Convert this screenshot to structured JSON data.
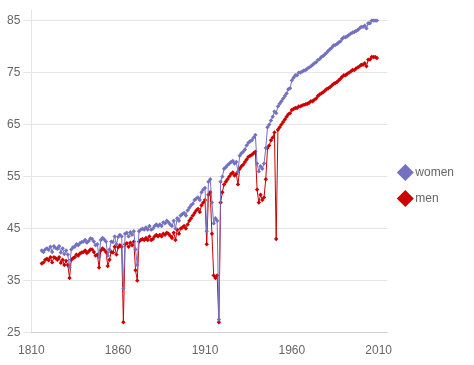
{
  "chart_data": {
    "type": "line",
    "x": [
      1816,
      1817,
      1818,
      1819,
      1820,
      1821,
      1822,
      1823,
      1824,
      1825,
      1826,
      1827,
      1828,
      1829,
      1830,
      1831,
      1832,
      1833,
      1834,
      1835,
      1836,
      1837,
      1838,
      1839,
      1840,
      1841,
      1842,
      1843,
      1844,
      1845,
      1846,
      1847,
      1848,
      1849,
      1850,
      1851,
      1852,
      1853,
      1854,
      1855,
      1856,
      1857,
      1858,
      1859,
      1860,
      1861,
      1862,
      1863,
      1864,
      1865,
      1866,
      1867,
      1868,
      1869,
      1870,
      1871,
      1872,
      1873,
      1874,
      1875,
      1876,
      1877,
      1878,
      1879,
      1880,
      1881,
      1882,
      1883,
      1884,
      1885,
      1886,
      1887,
      1888,
      1889,
      1890,
      1891,
      1892,
      1893,
      1894,
      1895,
      1896,
      1897,
      1898,
      1899,
      1900,
      1901,
      1902,
      1903,
      1904,
      1905,
      1906,
      1907,
      1908,
      1909,
      1910,
      1911,
      1912,
      1913,
      1914,
      1915,
      1916,
      1917,
      1918,
      1919,
      1920,
      1921,
      1922,
      1923,
      1924,
      1925,
      1926,
      1927,
      1928,
      1929,
      1930,
      1931,
      1932,
      1933,
      1934,
      1935,
      1936,
      1937,
      1938,
      1939,
      1940,
      1941,
      1942,
      1943,
      1944,
      1945,
      1946,
      1947,
      1948,
      1949,
      1950,
      1951,
      1952,
      1953,
      1954,
      1955,
      1956,
      1957,
      1958,
      1959,
      1960,
      1961,
      1962,
      1963,
      1964,
      1965,
      1966,
      1967,
      1968,
      1969,
      1970,
      1971,
      1972,
      1973,
      1974,
      1975,
      1976,
      1977,
      1978,
      1979,
      1980,
      1981,
      1982,
      1983,
      1984,
      1985,
      1986,
      1987,
      1988,
      1989,
      1990,
      1991,
      1992,
      1993,
      1994,
      1995,
      1996,
      1997,
      1998,
      1999,
      2000,
      2001,
      2002,
      2003,
      2004,
      2005,
      2006,
      2007,
      2008,
      2009
    ],
    "series": [
      {
        "name": "women",
        "color": "#7472c0",
        "marker": "diamond",
        "values": [
          40.8,
          40.5,
          41.0,
          41.2,
          40.9,
          41.5,
          40.5,
          41.6,
          41.3,
          41.1,
          41.6,
          40.4,
          41.2,
          40.1,
          40.8,
          40.0,
          37.5,
          41.0,
          41.4,
          41.5,
          42.0,
          41.8,
          42.2,
          42.4,
          42.5,
          42.8,
          42.3,
          42.6,
          43.1,
          43.0,
          42.5,
          41.8,
          42.0,
          39.5,
          42.8,
          43.2,
          42.9,
          42.5,
          39.8,
          41.0,
          42.5,
          42.4,
          43.5,
          42.0,
          43.4,
          43.8,
          43.5,
          33.5,
          44.0,
          44.2,
          43.5,
          44.3,
          43.8,
          44.5,
          41.0,
          38.0,
          44.5,
          44.8,
          45.0,
          44.8,
          45.2,
          44.8,
          45.5,
          44.8,
          45.0,
          45.5,
          45.8,
          45.5,
          45.8,
          45.5,
          46.2,
          46.0,
          46.5,
          46.2,
          45.8,
          45.5,
          46.5,
          45.0,
          47.0,
          46.5,
          47.5,
          47.8,
          48.0,
          47.5,
          48.5,
          49.0,
          49.5,
          49.8,
          50.5,
          50.8,
          51.0,
          50.5,
          52.0,
          52.5,
          52.8,
          44.5,
          54.0,
          54.5,
          50.0,
          46.0,
          47.0,
          46.5,
          27.5,
          54.0,
          55.0,
          56.5,
          56.8,
          57.2,
          57.5,
          57.8,
          58.0,
          57.5,
          57.8,
          56.0,
          59.0,
          59.5,
          59.8,
          60.2,
          61.0,
          61.5,
          61.8,
          62.0,
          62.5,
          63.0,
          57.5,
          56.0,
          57.0,
          56.5,
          57.5,
          60.5,
          64.5,
          65.0,
          65.8,
          66.5,
          67.5,
          67.2,
          68.5,
          69.0,
          69.5,
          70.0,
          70.5,
          71.0,
          71.8,
          72.0,
          73.5,
          74.0,
          74.5,
          74.5,
          75.0,
          75.0,
          75.2,
          75.4,
          75.5,
          75.8,
          76.0,
          76.2,
          76.5,
          76.8,
          77.0,
          77.4,
          77.6,
          78.0,
          78.2,
          78.5,
          78.8,
          79.2,
          79.5,
          79.8,
          80.2,
          80.3,
          80.5,
          80.8,
          81.0,
          81.5,
          81.8,
          81.8,
          82.0,
          82.3,
          82.5,
          82.7,
          82.8,
          83.0,
          83.2,
          83.5,
          83.8,
          83.8,
          84.0,
          83.5,
          84.5,
          84.5,
          85.0,
          85.0,
          85.0,
          85.0
        ]
      },
      {
        "name": "men",
        "color": "#cc0000",
        "marker": "diamond",
        "values": [
          38.3,
          38.5,
          39.0,
          39.2,
          38.9,
          39.5,
          38.5,
          39.5,
          39.3,
          39.0,
          39.5,
          38.4,
          39.0,
          38.0,
          38.8,
          38.0,
          35.5,
          39.0,
          39.3,
          39.5,
          40.0,
          39.8,
          40.2,
          40.4,
          40.5,
          40.8,
          40.3,
          40.6,
          41.0,
          41.0,
          40.5,
          39.8,
          40.0,
          37.5,
          40.8,
          41.2,
          40.9,
          40.5,
          37.8,
          39.0,
          40.5,
          40.4,
          41.5,
          40.0,
          41.4,
          41.8,
          41.5,
          27.0,
          42.0,
          42.2,
          41.5,
          42.3,
          41.8,
          42.5,
          37.0,
          35.0,
          42.5,
          42.8,
          43.0,
          42.8,
          43.2,
          42.8,
          43.5,
          42.8,
          43.0,
          43.5,
          43.8,
          43.5,
          43.8,
          43.5,
          44.0,
          43.8,
          44.2,
          44.0,
          43.6,
          43.2,
          44.2,
          42.8,
          44.8,
          44.0,
          45.0,
          45.2,
          45.5,
          45.0,
          45.8,
          46.5,
          47.0,
          47.5,
          48.0,
          48.5,
          48.8,
          48.2,
          49.5,
          50.0,
          50.5,
          42.0,
          51.5,
          52.0,
          44.0,
          36.0,
          35.5,
          36.0,
          27.0,
          50.0,
          52.0,
          53.5,
          54.0,
          54.5,
          55.0,
          55.5,
          55.8,
          55.2,
          55.5,
          53.5,
          56.5,
          57.0,
          57.3,
          57.8,
          58.3,
          58.8,
          59.0,
          59.2,
          59.5,
          59.8,
          52.5,
          50.0,
          51.5,
          50.5,
          51.0,
          54.5,
          60.5,
          61.0,
          62.0,
          62.5,
          63.5,
          43.0,
          64.0,
          64.5,
          65.0,
          65.5,
          66.0,
          66.5,
          67.0,
          67.2,
          67.8,
          68.0,
          68.2,
          68.2,
          68.5,
          68.5,
          68.7,
          68.8,
          68.9,
          69.0,
          69.2,
          69.5,
          69.5,
          69.8,
          70.0,
          70.5,
          70.8,
          71.0,
          71.2,
          71.5,
          71.8,
          72.0,
          72.2,
          72.5,
          72.8,
          73.0,
          73.2,
          73.5,
          73.8,
          74.2,
          74.5,
          74.5,
          74.8,
          75.0,
          75.2,
          75.5,
          75.5,
          75.8,
          76.0,
          76.2,
          76.5,
          76.5,
          76.8,
          76.2,
          77.5,
          77.5,
          78.0,
          78.0,
          78.0,
          77.8
        ]
      }
    ],
    "xlim": [
      1810,
      2015
    ],
    "xticks": [
      1810,
      1860,
      1910,
      1960,
      2010
    ],
    "ylim": [
      25,
      87
    ],
    "yticks": [
      25,
      35,
      45,
      55,
      65,
      75,
      85
    ],
    "grid": "y",
    "legend": "right"
  }
}
